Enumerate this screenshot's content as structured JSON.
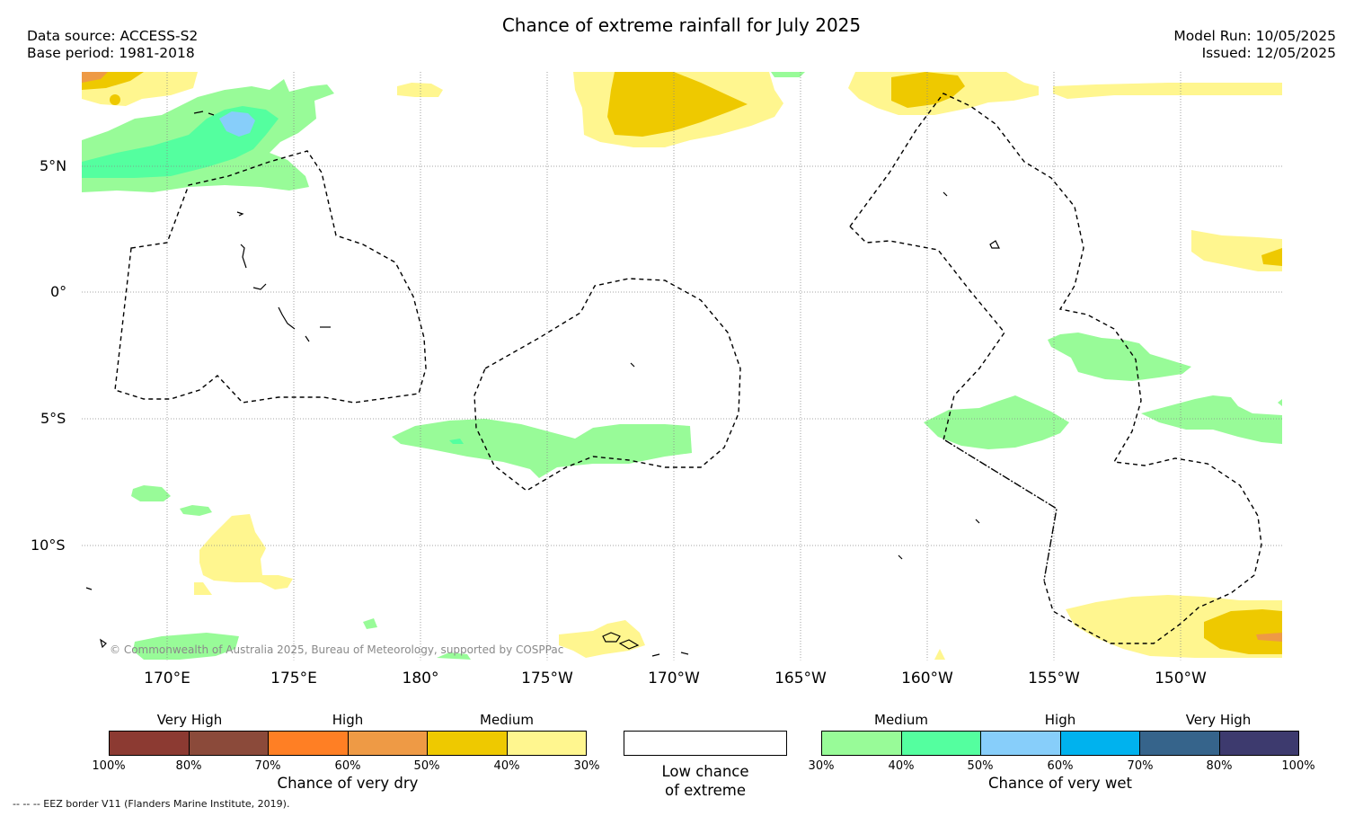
{
  "header": {
    "title": "Chance of extreme rainfall for July 2025",
    "data_source": "Data source: ACCESS-S2",
    "base_period": "Base period: 1981-2018",
    "model_run": "Model Run: 10/05/2025",
    "issued": "Issued: 12/05/2025"
  },
  "map": {
    "lat_labels": [
      "5°N",
      "0°",
      "5°S",
      "10°S"
    ],
    "lon_labels": [
      "170°E",
      "175°E",
      "180°",
      "175°W",
      "170°W",
      "165°W",
      "160°W",
      "155°W",
      "150°W"
    ],
    "copyright": "© Commonwealth of Australia 2025, Bureau of Meteorology, supported by COSPPac"
  },
  "legend_dry": {
    "headings": [
      "Very High",
      "High",
      "Medium"
    ],
    "ticks": [
      "100%",
      "80%",
      "70%",
      "60%",
      "50%",
      "40%",
      "30%"
    ],
    "caption": "Chance of very dry",
    "colors": [
      "#8c3a32",
      "#8b4a3a",
      "#ff7f24",
      "#ee9a45",
      "#eec900",
      "#fff68f"
    ]
  },
  "legend_low": {
    "caption_line1": "Low chance",
    "caption_line2": "of extreme",
    "color": "#ffffff"
  },
  "legend_wet": {
    "headings": [
      "Medium",
      "High",
      "Very High"
    ],
    "ticks": [
      "30%",
      "40%",
      "50%",
      "60%",
      "70%",
      "80%",
      "100%"
    ],
    "caption": "Chance of very wet",
    "colors": [
      "#98fb98",
      "#54ff9f",
      "#87cefa",
      "#00b2ee",
      "#36648b",
      "#3d3a6e"
    ]
  },
  "footnote": "-- -- -- EEZ border V11 (Flanders Marine Institute, 2019)."
}
